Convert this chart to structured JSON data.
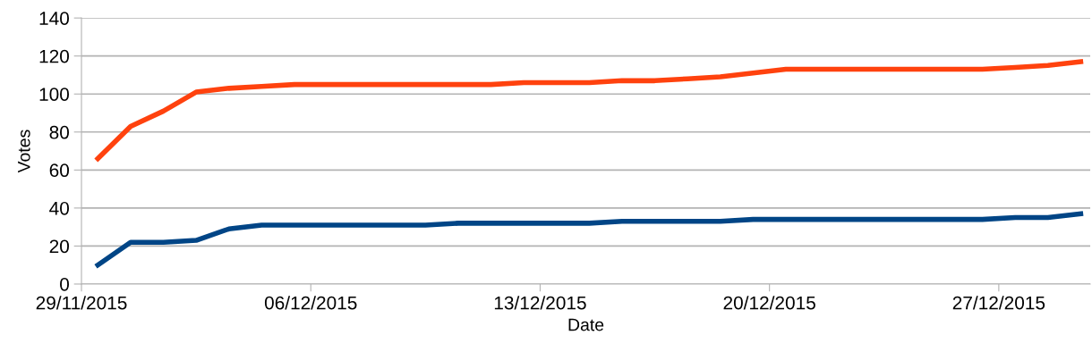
{
  "chart_data": {
    "type": "line",
    "xlabel": "Date",
    "ylabel": "Votes",
    "x": [
      "2015-11-29T12:00",
      "2015-11-30T12:00",
      "2015-12-01T12:00",
      "2015-12-02T12:00",
      "2015-12-03T12:00",
      "2015-12-04T12:00",
      "2015-12-05T12:00",
      "2015-12-06T12:00",
      "2015-12-07T12:00",
      "2015-12-08T12:00",
      "2015-12-09T12:00",
      "2015-12-10T12:00",
      "2015-12-11T12:00",
      "2015-12-12T12:00",
      "2015-12-13T12:00",
      "2015-12-14T12:00",
      "2015-12-15T12:00",
      "2015-12-16T12:00",
      "2015-12-17T12:00",
      "2015-12-18T12:00",
      "2015-12-19T12:00",
      "2015-12-20T12:00",
      "2015-12-21T12:00",
      "2015-12-22T12:00",
      "2015-12-23T12:00",
      "2015-12-24T12:00",
      "2015-12-25T12:00",
      "2015-12-26T12:00",
      "2015-12-27T12:00",
      "2015-12-28T12:00",
      "2015-12-29T12:00"
    ],
    "series": [
      {
        "color": "#ff420e",
        "values": [
          66,
          83,
          91,
          101,
          103,
          104,
          105,
          105,
          105,
          105,
          105,
          105,
          105,
          106,
          106,
          106,
          107,
          107,
          108,
          109,
          111,
          113,
          113,
          113,
          113,
          113,
          113,
          113,
          114,
          115,
          117
        ]
      },
      {
        "color": "#004586",
        "values": [
          10,
          22,
          22,
          23,
          29,
          31,
          31,
          31,
          31,
          31,
          31,
          32,
          32,
          32,
          32,
          32,
          33,
          33,
          33,
          33,
          34,
          34,
          34,
          34,
          34,
          34,
          34,
          34,
          35,
          35,
          37
        ]
      }
    ],
    "xlim": [
      "2015-11-29",
      "2015-12-29T19:00"
    ],
    "xticks": [
      {
        "value": "2015-11-29",
        "label": "29/11/2015"
      },
      {
        "value": "2015-12-06",
        "label": "06/12/2015"
      },
      {
        "value": "2015-12-13",
        "label": "13/12/2015"
      },
      {
        "value": "2015-12-20",
        "label": "20/12/2015"
      },
      {
        "value": "2015-12-27",
        "label": "27/12/2015"
      }
    ],
    "ylim": [
      0,
      140
    ],
    "yticks": [
      0,
      20,
      40,
      60,
      80,
      100,
      120,
      140
    ],
    "grid": "y",
    "marker": "none",
    "line_style": "solid"
  }
}
